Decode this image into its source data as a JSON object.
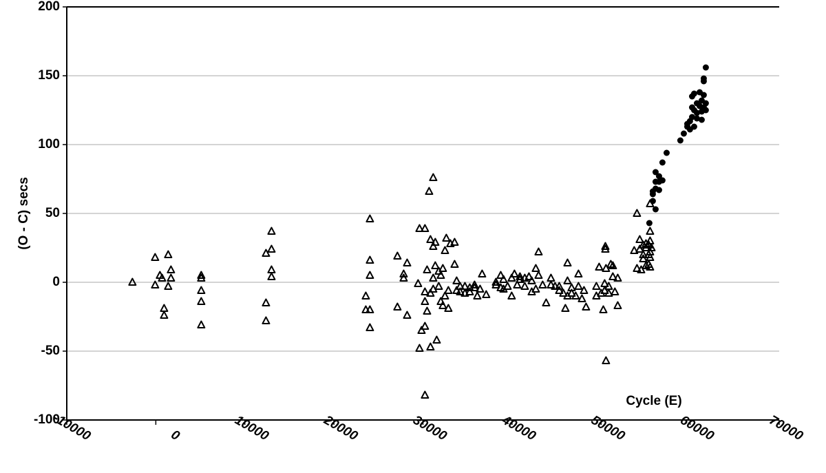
{
  "chart_data": {
    "type": "scatter",
    "y_label": "(O - C) secs",
    "annotation": "Cycle (E)",
    "xlim": [
      -10000,
      70000
    ],
    "ylim": [
      -100,
      200
    ],
    "xticks": [
      -10000,
      0,
      10000,
      20000,
      30000,
      40000,
      50000,
      60000,
      70000
    ],
    "yticks": [
      -100,
      -50,
      0,
      50,
      100,
      150,
      200
    ],
    "grid": true,
    "series": [
      {
        "marker": "triangle",
        "color": "#000000",
        "x": [
          -2630,
          -80,
          -80,
          460,
          700,
          930,
          930,
          1390,
          1390,
          1700,
          1700,
          5100,
          5100,
          5100,
          5100,
          5100,
          12370,
          12370,
          12370,
          12990,
          12990,
          12990,
          12990,
          23580,
          23580,
          24040,
          24040,
          24040,
          24040,
          24040,
          27130,
          27130,
          27830,
          27830,
          28220,
          28220,
          29450,
          29610,
          29610,
          29840,
          30220,
          30220,
          30220,
          30220,
          30220,
          30460,
          30460,
          30690,
          30840,
          30840,
          30840,
          31150,
          31150,
          31150,
          31150,
          31380,
          31380,
          31540,
          31770,
          31770,
          32000,
          32000,
          32230,
          32230,
          32470,
          32470,
          32620,
          32850,
          32850,
          33080,
          33550,
          33550,
          33780,
          33780,
          34170,
          34170,
          34710,
          34710,
          35250,
          35250,
          35790,
          35790,
          36100,
          36410,
          36640,
          37100,
          38190,
          38190,
          38730,
          38730,
          39040,
          39040,
          39500,
          39960,
          39960,
          40270,
          40580,
          40890,
          40890,
          41430,
          41430,
          41900,
          42210,
          42210,
          42670,
          42670,
          42980,
          42980,
          43440,
          43830,
          44370,
          44370,
          44830,
          45300,
          45300,
          45760,
          45990,
          46230,
          46230,
          46230,
          46690,
          46690,
          47150,
          47460,
          47460,
          47850,
          48080,
          48310,
          49470,
          49470,
          49780,
          50010,
          50250,
          50400,
          50400,
          50480,
          50480,
          50550,
          50550,
          50860,
          50860,
          51090,
          51320,
          51320,
          51550,
          51870,
          51870,
          53720,
          54030,
          54030,
          54340,
          54340,
          54500,
          54730,
          54730,
          54730,
          55040,
          55040,
          55040,
          55350,
          55350,
          55350,
          55500,
          55500,
          55500,
          55500,
          55500,
          55500,
          55660
        ],
        "values": [
          0,
          18,
          -2,
          5,
          3,
          -19,
          -24,
          20,
          -3,
          9,
          3,
          5,
          3,
          -6,
          -14,
          -31,
          21,
          -15,
          -28,
          37,
          24,
          9,
          4,
          -10,
          -20,
          46,
          16,
          5,
          -20,
          -33,
          19,
          -18,
          6,
          3,
          14,
          -24,
          -1,
          39,
          -48,
          -35,
          39,
          -32,
          -82,
          -14,
          -7,
          9,
          -21,
          66,
          31,
          -8,
          -47,
          76,
          26,
          3,
          -5,
          12,
          29,
          -42,
          -3,
          8,
          5,
          -14,
          -17,
          10,
          23,
          -10,
          32,
          -19,
          -6,
          28,
          29,
          13,
          1,
          -6,
          -3,
          -7,
          -8,
          -3,
          -4,
          -7,
          -2,
          -4,
          -10,
          -5,
          6,
          -9,
          0,
          -2,
          -4,
          5,
          -5,
          2,
          -3,
          3,
          -10,
          6,
          -2,
          4,
          2,
          3,
          -3,
          4,
          1,
          -7,
          10,
          -5,
          22,
          5,
          -2,
          -15,
          3,
          -2,
          -3,
          -3,
          -6,
          -8,
          -19,
          14,
          1,
          -10,
          -8,
          -4,
          -10,
          -3,
          6,
          -12,
          -6,
          -18,
          -3,
          -10,
          11,
          -8,
          -20,
          -6,
          -1,
          26,
          24,
          -57,
          10,
          -8,
          -3,
          13,
          4,
          12,
          -7,
          3,
          -17,
          23,
          50,
          10,
          31,
          24,
          9,
          17,
          27,
          20,
          12,
          25,
          28,
          27,
          20,
          13,
          57,
          37,
          30,
          18,
          22,
          11,
          25
        ]
      },
      {
        "marker": "circle",
        "color": "#000000",
        "x": [
          55420,
          55810,
          55810,
          55810,
          56120,
          56120,
          56120,
          56120,
          56510,
          56510,
          56510,
          56890,
          56890,
          57360,
          58900,
          59290,
          59680,
          59680,
          59980,
          59980,
          60220,
          60220,
          60220,
          60450,
          60450,
          60450,
          60760,
          60760,
          60760,
          61070,
          61070,
          61300,
          61300,
          61300,
          61530,
          61530,
          61530,
          61530,
          61760,
          61760,
          61760
        ],
        "values": [
          43,
          59,
          64,
          66,
          53,
          68,
          73,
          80,
          67,
          73,
          77,
          74,
          87,
          94,
          103,
          108,
          113,
          115,
          111,
          117,
          120,
          127,
          135,
          113,
          125,
          137,
          119,
          123,
          130,
          128,
          138,
          118,
          124,
          132,
          127,
          136,
          146,
          148,
          125,
          130,
          156
        ]
      }
    ]
  }
}
